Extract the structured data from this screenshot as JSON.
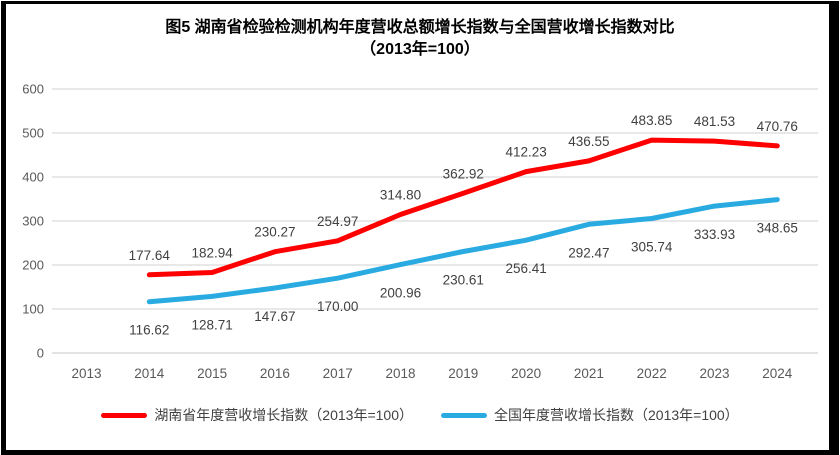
{
  "title": {
    "line1": "图5 湖南省检验检测机构年度营收总额增长指数与全国营收增长指数对比",
    "line2": "（2013年=100）"
  },
  "colors": {
    "hunan_series": "#fe0000",
    "national_series": "#29abe2",
    "gridline": "#d9d9d9",
    "axis_line": "#d2d2d2",
    "tick_text": "#595959",
    "data_label_text": "#404040",
    "title_text": "#000000",
    "frame": "#000000"
  },
  "chart_data": {
    "type": "line",
    "title": "图5 湖南省检验检测机构年度营收总额增长指数与全国营收增长指数对比（2013年=100）",
    "categories": [
      "2013",
      "2014",
      "2015",
      "2016",
      "2017",
      "2018",
      "2019",
      "2020",
      "2021",
      "2022",
      "2023",
      "2024"
    ],
    "series": [
      {
        "name": "湖南省年度营收增长指数（2013年=100）",
        "color_key": "hunan_series",
        "label_position": "above",
        "values": [
          null,
          177.64,
          182.94,
          230.27,
          254.97,
          314.8,
          362.92,
          412.23,
          436.55,
          483.85,
          481.53,
          470.76
        ]
      },
      {
        "name": "全国年度营收增长指数（2013年=100）",
        "color_key": "national_series",
        "label_position": "below",
        "values": [
          null,
          116.62,
          128.71,
          147.67,
          170.0,
          200.96,
          230.61,
          256.41,
          292.47,
          305.74,
          333.93,
          348.65
        ]
      }
    ],
    "y_ticks": [
      0,
      100,
      200,
      300,
      400,
      500,
      600
    ],
    "ylim": [
      0,
      600
    ],
    "xlabel": "",
    "ylabel": "",
    "grid": true,
    "legend_position": "bottom",
    "decimals": 2
  }
}
